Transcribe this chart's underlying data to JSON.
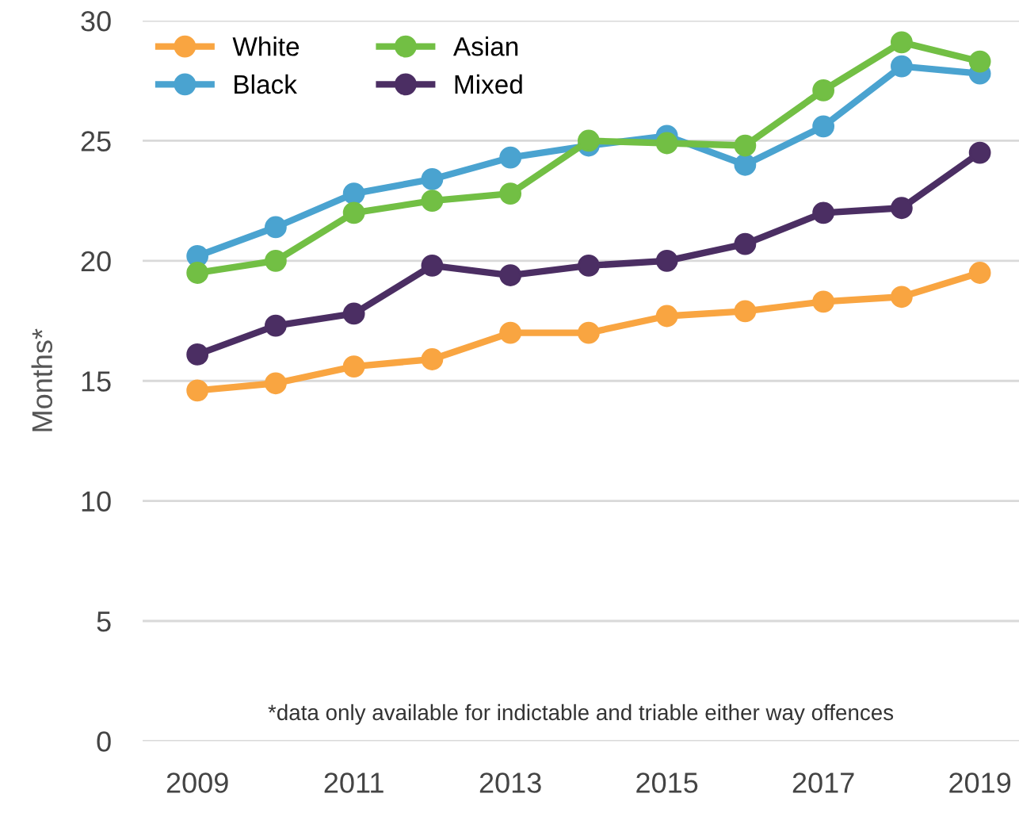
{
  "chart_data": {
    "type": "line",
    "ylabel": "Months*",
    "x": [
      2009,
      2010,
      2011,
      2012,
      2013,
      2014,
      2015,
      2016,
      2017,
      2018,
      2019
    ],
    "series": [
      {
        "name": "White",
        "color": "#f9a541",
        "values": [
          14.6,
          14.9,
          15.6,
          15.9,
          17.0,
          17.0,
          17.7,
          17.9,
          18.3,
          18.5,
          19.5
        ]
      },
      {
        "name": "Black",
        "color": "#4aa3d0",
        "values": [
          20.2,
          21.4,
          22.8,
          23.4,
          24.3,
          24.8,
          25.2,
          24.0,
          25.6,
          28.1,
          27.8
        ]
      },
      {
        "name": "Asian",
        "color": "#72bf44",
        "values": [
          19.5,
          20.0,
          22.0,
          22.5,
          22.8,
          25.0,
          24.9,
          24.8,
          27.1,
          29.1,
          28.3
        ]
      },
      {
        "name": "Mixed",
        "color": "#4b2e63",
        "values": [
          16.1,
          17.3,
          17.8,
          19.8,
          19.4,
          19.8,
          20.0,
          20.7,
          22.0,
          22.2,
          24.5
        ]
      }
    ],
    "xlim": [
      2008.3,
      2019.5
    ],
    "xticks": [
      2009,
      2011,
      2013,
      2015,
      2017,
      2019
    ],
    "ylim": [
      0,
      30
    ],
    "yticks": [
      0,
      5,
      10,
      15,
      20,
      25,
      30
    ],
    "grid": "y",
    "legend": "top left",
    "marker": "circle",
    "line_style": "solid",
    "annotations": [
      "*data only available for indictable and triable either way offences"
    ]
  }
}
